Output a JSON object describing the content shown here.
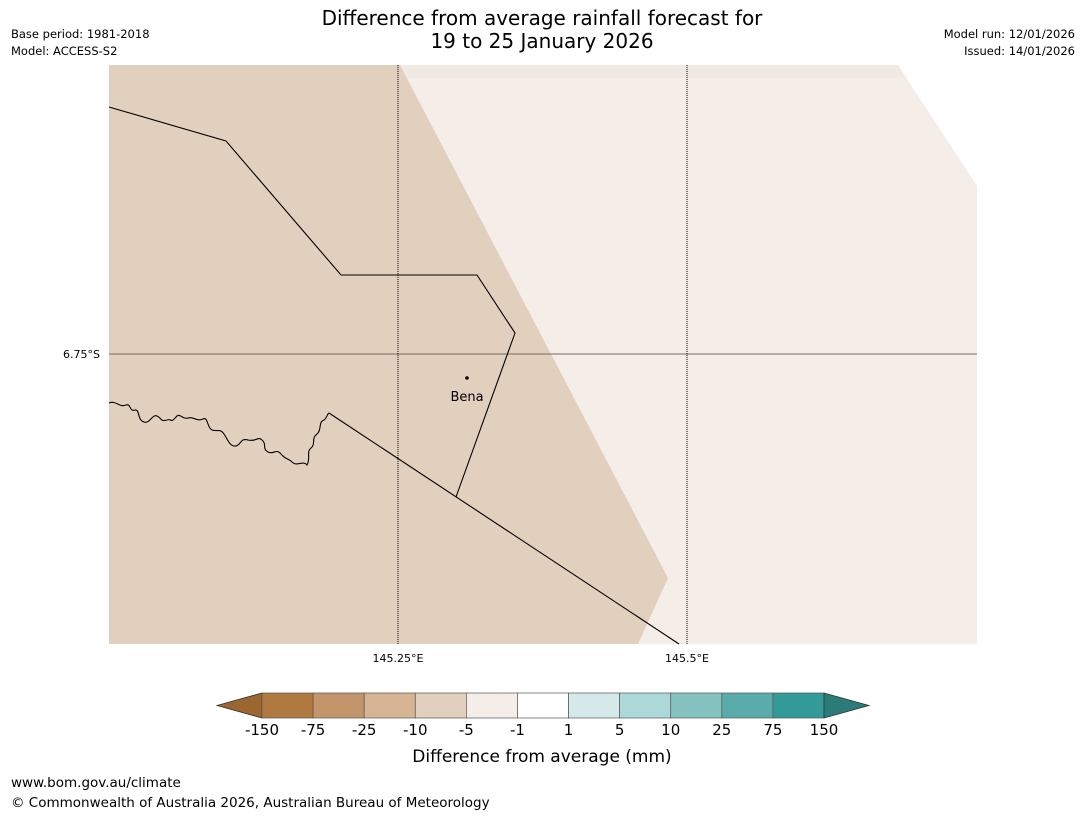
{
  "header": {
    "title_line1": "Difference from average rainfall forecast for",
    "title_line2": "19 to 25 January 2026",
    "base_period": "Base period: 1981-2018",
    "model": "Model: ACCESS-S2",
    "model_run": "Model run: 12/01/2026",
    "issued": "Issued: 14/01/2026"
  },
  "map": {
    "place_name": "Bena",
    "lat_label": "6.75°S",
    "lon_labels": [
      "145.25°E",
      "145.5°E"
    ],
    "fill_colors": {
      "drier": "#e2d0be",
      "near_average": "#f5ede7",
      "gridline": "#7a6a60"
    }
  },
  "legend": {
    "title": "Difference from average (mm)",
    "ticks": [
      "-150",
      "-75",
      "-25",
      "-10",
      "-5",
      "-1",
      "1",
      "5",
      "10",
      "25",
      "75",
      "150"
    ],
    "colors": [
      "#9c6630",
      "#b07940",
      "#c4956a",
      "#d6b595",
      "#e2d0be",
      "#f5ede7",
      "#ffffff",
      "#d6e9ea",
      "#add8d8",
      "#84c2c0",
      "#5aacaa",
      "#329a97",
      "#2b7b79"
    ]
  },
  "footer": {
    "url": "www.bom.gov.au/climate",
    "copyright": "© Commonwealth of Australia 2026, Australian Bureau of Meteorology"
  }
}
